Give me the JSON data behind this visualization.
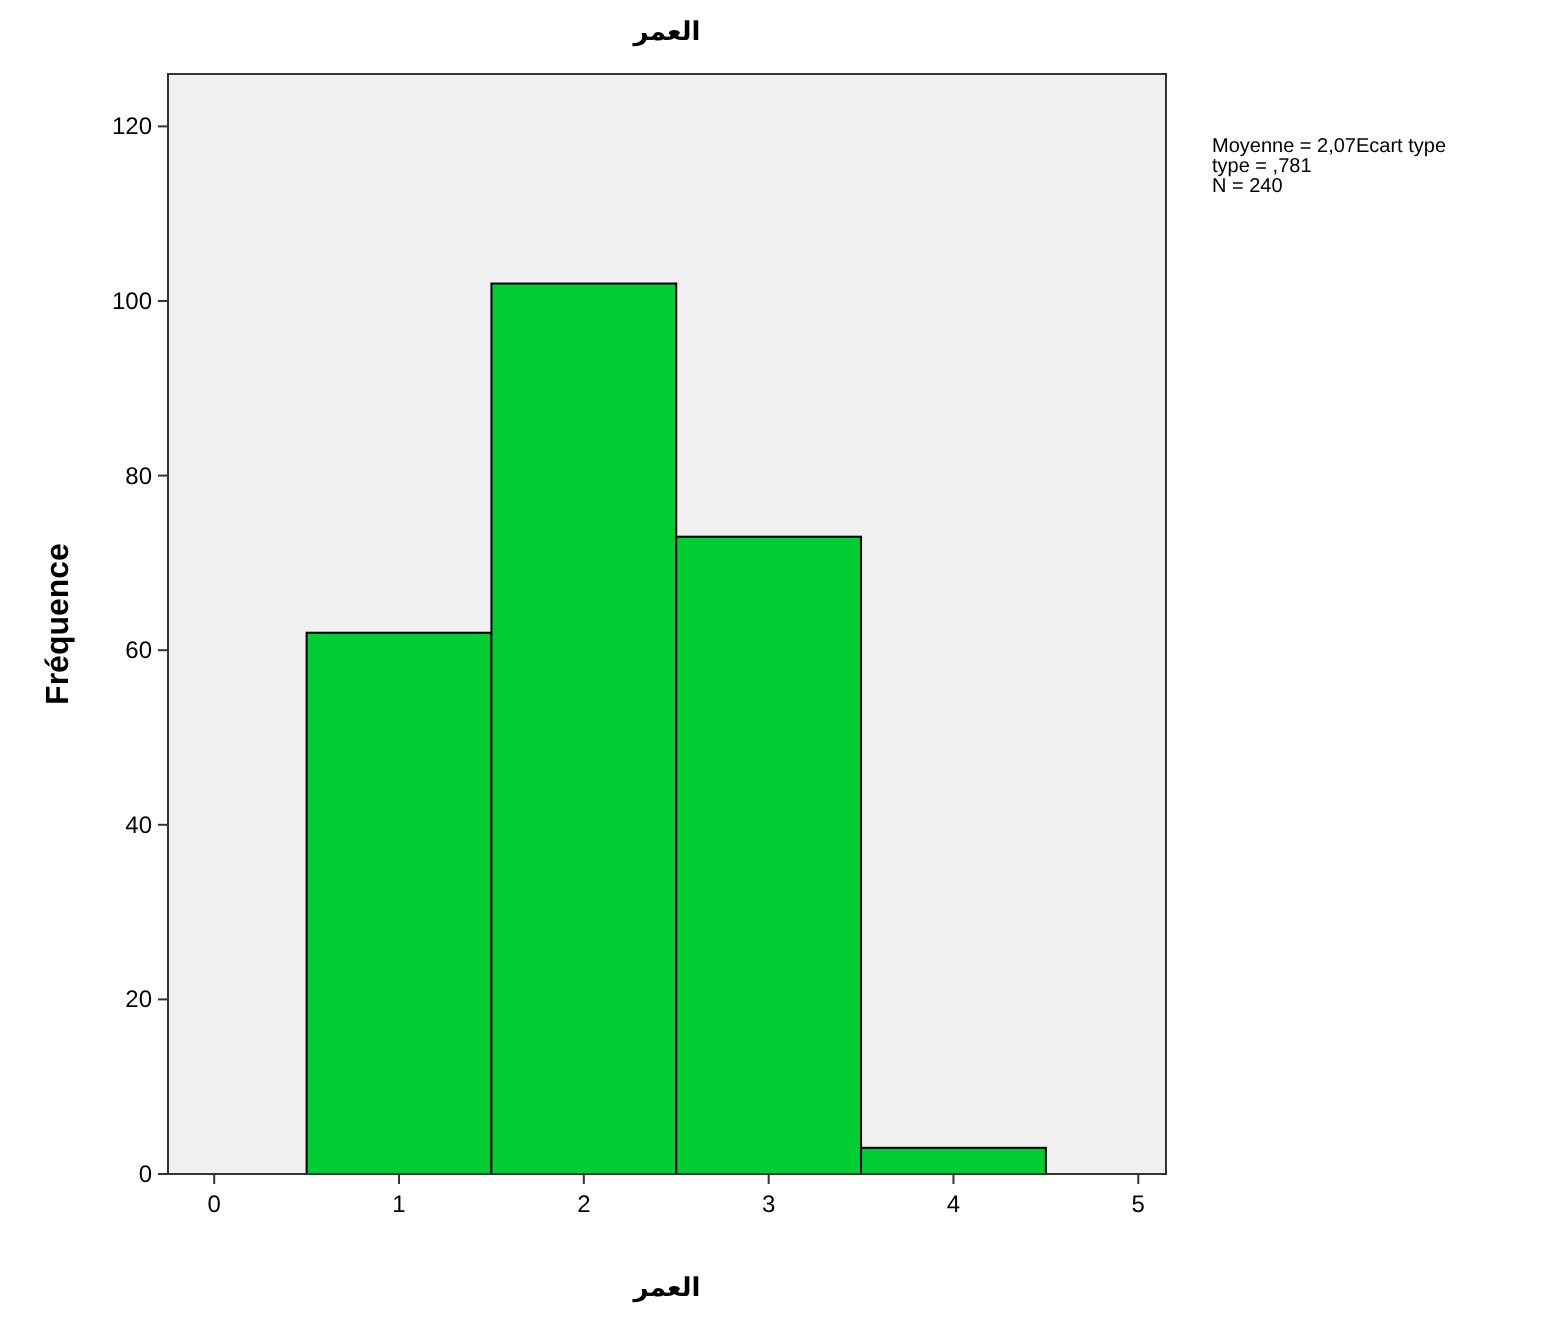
{
  "chart_data": {
    "type": "histogram",
    "title": "العمر",
    "xlabel": "العمر",
    "ylabel": "Fréquence",
    "bins": [
      0.5,
      1.5,
      2.5,
      3.5,
      4.5
    ],
    "values": [
      62,
      102,
      73,
      3
    ],
    "color": "#00cc33",
    "xlim": [
      -0.25,
      5.15
    ],
    "ylim": [
      0,
      126
    ],
    "xticks": [
      0,
      1,
      2,
      3,
      4,
      5
    ],
    "yticks": [
      0,
      20,
      40,
      60,
      80,
      100,
      120
    ],
    "annotations": [
      "Moyenne = 2,07Ecart type",
      " type = ,781",
      "N = 240"
    ]
  }
}
